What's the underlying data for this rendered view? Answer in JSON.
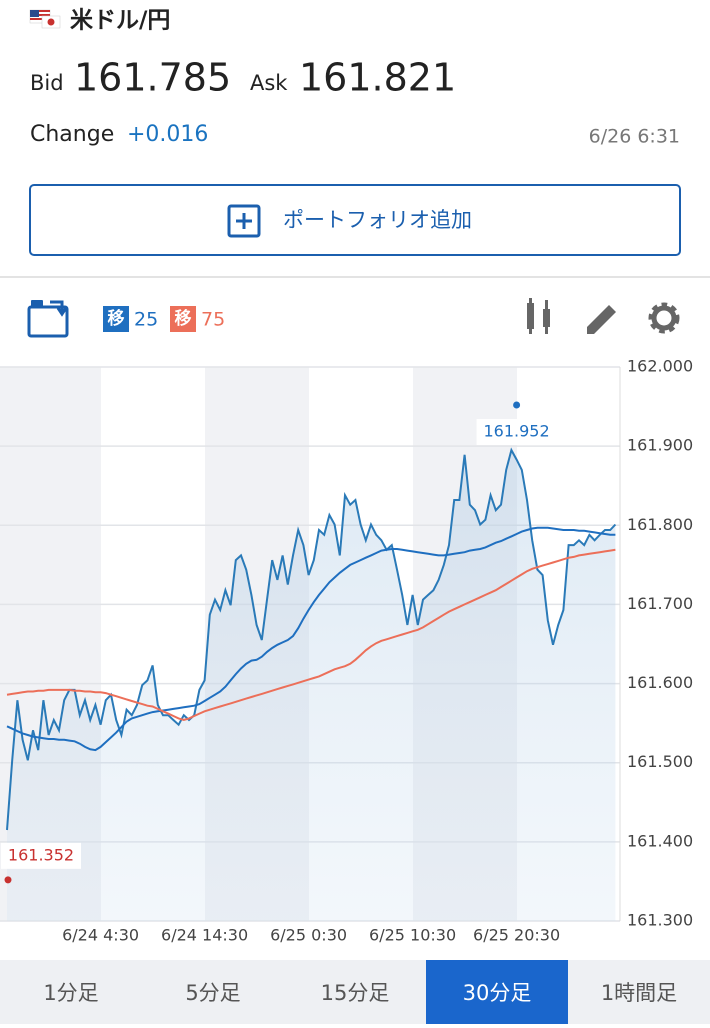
{
  "header": {
    "pair": "米ドル/円",
    "bid_label": "Bid",
    "bid": "161.785",
    "ask_label": "Ask",
    "ask": "161.821",
    "change_label": "Change",
    "change": "+0.016",
    "time": "6/26 6:31"
  },
  "portfolio_button": "ポートフォリオ追加",
  "toolbar": {
    "ma_badge": "移"
  },
  "tabs": [
    "1分足",
    "5分足",
    "15分足",
    "30分足",
    "1時間足"
  ],
  "selected_tab": 3,
  "chart_data": {
    "type": "line",
    "categories": [
      null,
      null,
      null,
      null,
      null,
      null,
      null,
      null,
      null,
      null,
      null,
      null,
      null,
      null,
      null,
      null,
      null,
      null,
      "6/24 4:30",
      null,
      null,
      null,
      null,
      null,
      null,
      null,
      null,
      null,
      null,
      null,
      null,
      null,
      null,
      null,
      null,
      null,
      null,
      null,
      "6/24 14:30",
      null,
      null,
      null,
      null,
      null,
      null,
      null,
      null,
      null,
      null,
      null,
      null,
      null,
      null,
      null,
      null,
      null,
      null,
      null,
      "6/25 0:30",
      null,
      null,
      null,
      null,
      null,
      null,
      null,
      null,
      null,
      null,
      null,
      null,
      null,
      null,
      null,
      null,
      null,
      null,
      null,
      "6/25 10:30",
      null,
      null,
      null,
      null,
      null,
      null,
      null,
      null,
      null,
      null,
      null,
      null,
      null,
      null,
      null,
      null,
      null,
      null,
      null,
      "6/25 20:30",
      null,
      null,
      null,
      null,
      null,
      null,
      null,
      null,
      null,
      null,
      null,
      null,
      null,
      null,
      null,
      null,
      null,
      null,
      null
    ],
    "series": [
      {
        "color": "#2a7ab8",
        "area": true,
        "values": [
          161.415,
          161.503,
          161.579,
          161.529,
          161.503,
          161.541,
          161.516,
          161.579,
          161.535,
          161.554,
          161.541,
          161.579,
          161.592,
          161.592,
          161.56,
          161.579,
          161.554,
          161.573,
          161.548,
          161.579,
          161.586,
          161.554,
          161.535,
          161.567,
          161.56,
          161.573,
          161.598,
          161.604,
          161.623,
          161.573,
          161.56,
          161.56,
          161.554,
          161.548,
          161.56,
          161.554,
          161.56,
          161.592,
          161.604,
          161.687,
          161.706,
          161.693,
          161.718,
          161.699,
          161.756,
          161.762,
          161.744,
          161.712,
          161.674,
          161.655,
          161.706,
          161.756,
          161.731,
          161.762,
          161.725,
          161.762,
          161.794,
          161.775,
          161.737,
          161.756,
          161.794,
          161.788,
          161.813,
          161.801,
          161.762,
          161.838,
          161.826,
          161.832,
          161.801,
          161.781,
          161.801,
          161.788,
          161.781,
          161.769,
          161.775,
          161.744,
          161.712,
          161.674,
          161.712,
          161.674,
          161.706,
          161.712,
          161.718,
          161.731,
          161.75,
          161.775,
          161.832,
          161.832,
          161.889,
          161.826,
          161.819,
          161.801,
          161.807,
          161.838,
          161.819,
          161.826,
          161.87,
          161.895,
          161.883,
          161.87,
          161.832,
          161.781,
          161.744,
          161.737,
          161.68,
          161.649,
          161.674,
          161.693,
          161.775,
          161.775,
          161.781,
          161.775,
          161.788,
          161.781,
          161.788,
          161.794,
          161.794,
          161.801
        ]
      },
      {
        "name": "25",
        "color": "#1f6fc0",
        "values": [
          161.546,
          161.543,
          161.54,
          161.537,
          161.535,
          161.533,
          161.532,
          161.531,
          161.53,
          161.53,
          161.529,
          161.529,
          161.528,
          161.527,
          161.524,
          161.52,
          161.517,
          161.516,
          161.52,
          161.526,
          161.532,
          161.538,
          161.545,
          161.552,
          161.556,
          161.558,
          161.56,
          161.562,
          161.564,
          161.565,
          161.566,
          161.567,
          161.568,
          161.569,
          161.57,
          161.571,
          161.572,
          161.574,
          161.578,
          161.582,
          161.586,
          161.59,
          161.596,
          161.604,
          161.612,
          161.619,
          161.625,
          161.629,
          161.63,
          161.634,
          161.64,
          161.645,
          161.649,
          161.652,
          161.655,
          161.66,
          161.67,
          161.682,
          161.693,
          161.703,
          161.712,
          161.72,
          161.728,
          161.734,
          161.74,
          161.745,
          161.75,
          161.753,
          161.756,
          161.759,
          161.762,
          161.765,
          161.768,
          161.769,
          161.77,
          161.77,
          161.769,
          161.768,
          161.767,
          161.766,
          161.765,
          161.764,
          161.763,
          161.762,
          161.762,
          161.763,
          161.764,
          161.765,
          161.766,
          161.768,
          161.769,
          161.77,
          161.772,
          161.775,
          161.778,
          161.78,
          161.783,
          161.786,
          161.789,
          161.792,
          161.794,
          161.796,
          161.797,
          161.797,
          161.797,
          161.796,
          161.795,
          161.794,
          161.794,
          161.794,
          161.793,
          161.793,
          161.792,
          161.791,
          161.79,
          161.789,
          161.788,
          161.788
        ]
      },
      {
        "name": "75",
        "color": "#ec6f59",
        "values": [
          161.586,
          161.587,
          161.588,
          161.589,
          161.59,
          161.59,
          161.591,
          161.591,
          161.592,
          161.592,
          161.592,
          161.592,
          161.592,
          161.591,
          161.591,
          161.59,
          161.59,
          161.589,
          161.589,
          161.588,
          161.586,
          161.584,
          161.582,
          161.58,
          161.578,
          161.576,
          161.574,
          161.572,
          161.571,
          161.568,
          161.565,
          161.562,
          161.559,
          161.556,
          161.554,
          161.556,
          161.559,
          161.562,
          161.565,
          161.567,
          161.569,
          161.571,
          161.573,
          161.575,
          161.577,
          161.579,
          161.581,
          161.583,
          161.585,
          161.587,
          161.589,
          161.591,
          161.593,
          161.595,
          161.597,
          161.599,
          161.601,
          161.603,
          161.605,
          161.607,
          161.609,
          161.612,
          161.615,
          161.618,
          161.62,
          161.622,
          161.625,
          161.63,
          161.636,
          161.642,
          161.647,
          161.651,
          161.654,
          161.656,
          161.658,
          161.66,
          161.662,
          161.664,
          161.666,
          161.668,
          161.671,
          161.675,
          161.679,
          161.683,
          161.687,
          161.691,
          161.694,
          161.697,
          161.7,
          161.703,
          161.706,
          161.709,
          161.712,
          161.715,
          161.718,
          161.722,
          161.726,
          161.73,
          161.734,
          161.738,
          161.742,
          161.745,
          161.747,
          161.749,
          161.751,
          161.753,
          161.755,
          161.757,
          161.759,
          161.76,
          161.762,
          161.763,
          161.764,
          161.765,
          161.766,
          161.767,
          161.768,
          161.769
        ]
      }
    ],
    "ylim": [
      161.3,
      162.0
    ],
    "yticks": [
      {
        "value": 161.3,
        "label": "161.300"
      },
      {
        "value": 161.4,
        "label": "161.400"
      },
      {
        "value": 161.5,
        "label": "161.500"
      },
      {
        "value": 161.6,
        "label": "161.600"
      },
      {
        "value": 161.7,
        "label": "161.700"
      },
      {
        "value": 161.8,
        "label": "161.800"
      },
      {
        "value": 161.9,
        "label": "161.900"
      },
      {
        "value": 162.0,
        "label": "162.000"
      }
    ],
    "grid": true,
    "annotations": [
      {
        "label": "161.952",
        "value": 161.952,
        "color": "#1f6fc0"
      },
      {
        "label": "161.352",
        "value": 161.352,
        "color": "#c8312f"
      }
    ]
  }
}
